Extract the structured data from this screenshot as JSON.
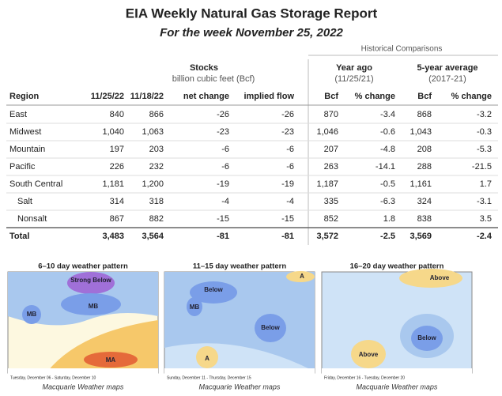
{
  "header": {
    "title": "EIA Weekly Natural Gas Storage Report",
    "subtitle": "For the week November 25, 2022"
  },
  "table": {
    "group_labels": {
      "historical": "Historical Comparisons",
      "stocks": "Stocks",
      "stocks_unit": "billion cubic feet (Bcf)",
      "year_ago": "Year ago",
      "year_ago_date": "(11/25/21)",
      "five_year": "5-year average",
      "five_year_range": "(2017-21)"
    },
    "columns": [
      "Region",
      "11/25/22",
      "11/18/22",
      "net change",
      "implied flow",
      "Bcf",
      "% change",
      "Bcf",
      "% change"
    ],
    "rows": [
      [
        "East",
        "840",
        "866",
        "-26",
        "-26",
        "870",
        "-3.4",
        "868",
        "-3.2"
      ],
      [
        "Midwest",
        "1,040",
        "1,063",
        "-23",
        "-23",
        "1,046",
        "-0.6",
        "1,043",
        "-0.3"
      ],
      [
        "Mountain",
        "197",
        "203",
        "-6",
        "-6",
        "207",
        "-4.8",
        "208",
        "-5.3"
      ],
      [
        "Pacific",
        "226",
        "232",
        "-6",
        "-6",
        "263",
        "-14.1",
        "288",
        "-21.5"
      ],
      [
        "South Central",
        "1,181",
        "1,200",
        "-19",
        "-19",
        "1,187",
        "-0.5",
        "1,161",
        "1.7"
      ],
      [
        "Salt",
        "314",
        "318",
        "-4",
        "-4",
        "335",
        "-6.3",
        "324",
        "-3.1"
      ],
      [
        "Nonsalt",
        "867",
        "882",
        "-15",
        "-15",
        "852",
        "1.8",
        "838",
        "3.5"
      ],
      [
        "Total",
        "3,483",
        "3,564",
        "-81",
        "-81",
        "3,572",
        "-2.5",
        "3,569",
        "-2.4"
      ]
    ]
  },
  "maps": [
    {
      "title": "6–10 day weather pattern",
      "labels": [
        "Strong Below",
        "MB",
        "MB",
        "MA"
      ],
      "dates": "Tuesday, December 06 - Saturday, December 10",
      "credit": "Macquarie Weather maps"
    },
    {
      "title": "11–15 day weather pattern",
      "labels": [
        "Below",
        "MB",
        "Below",
        "A",
        "A"
      ],
      "dates": "Sunday, December 11 - Thursday, December 15",
      "credit": "Macquarie Weather maps"
    },
    {
      "title": "16–20 day weather pattern",
      "labels": [
        "Above",
        "Below",
        "Above"
      ],
      "dates": "Friday, December 16 - Tuesday, December 20",
      "credit": "Macquarie Weather maps"
    }
  ]
}
